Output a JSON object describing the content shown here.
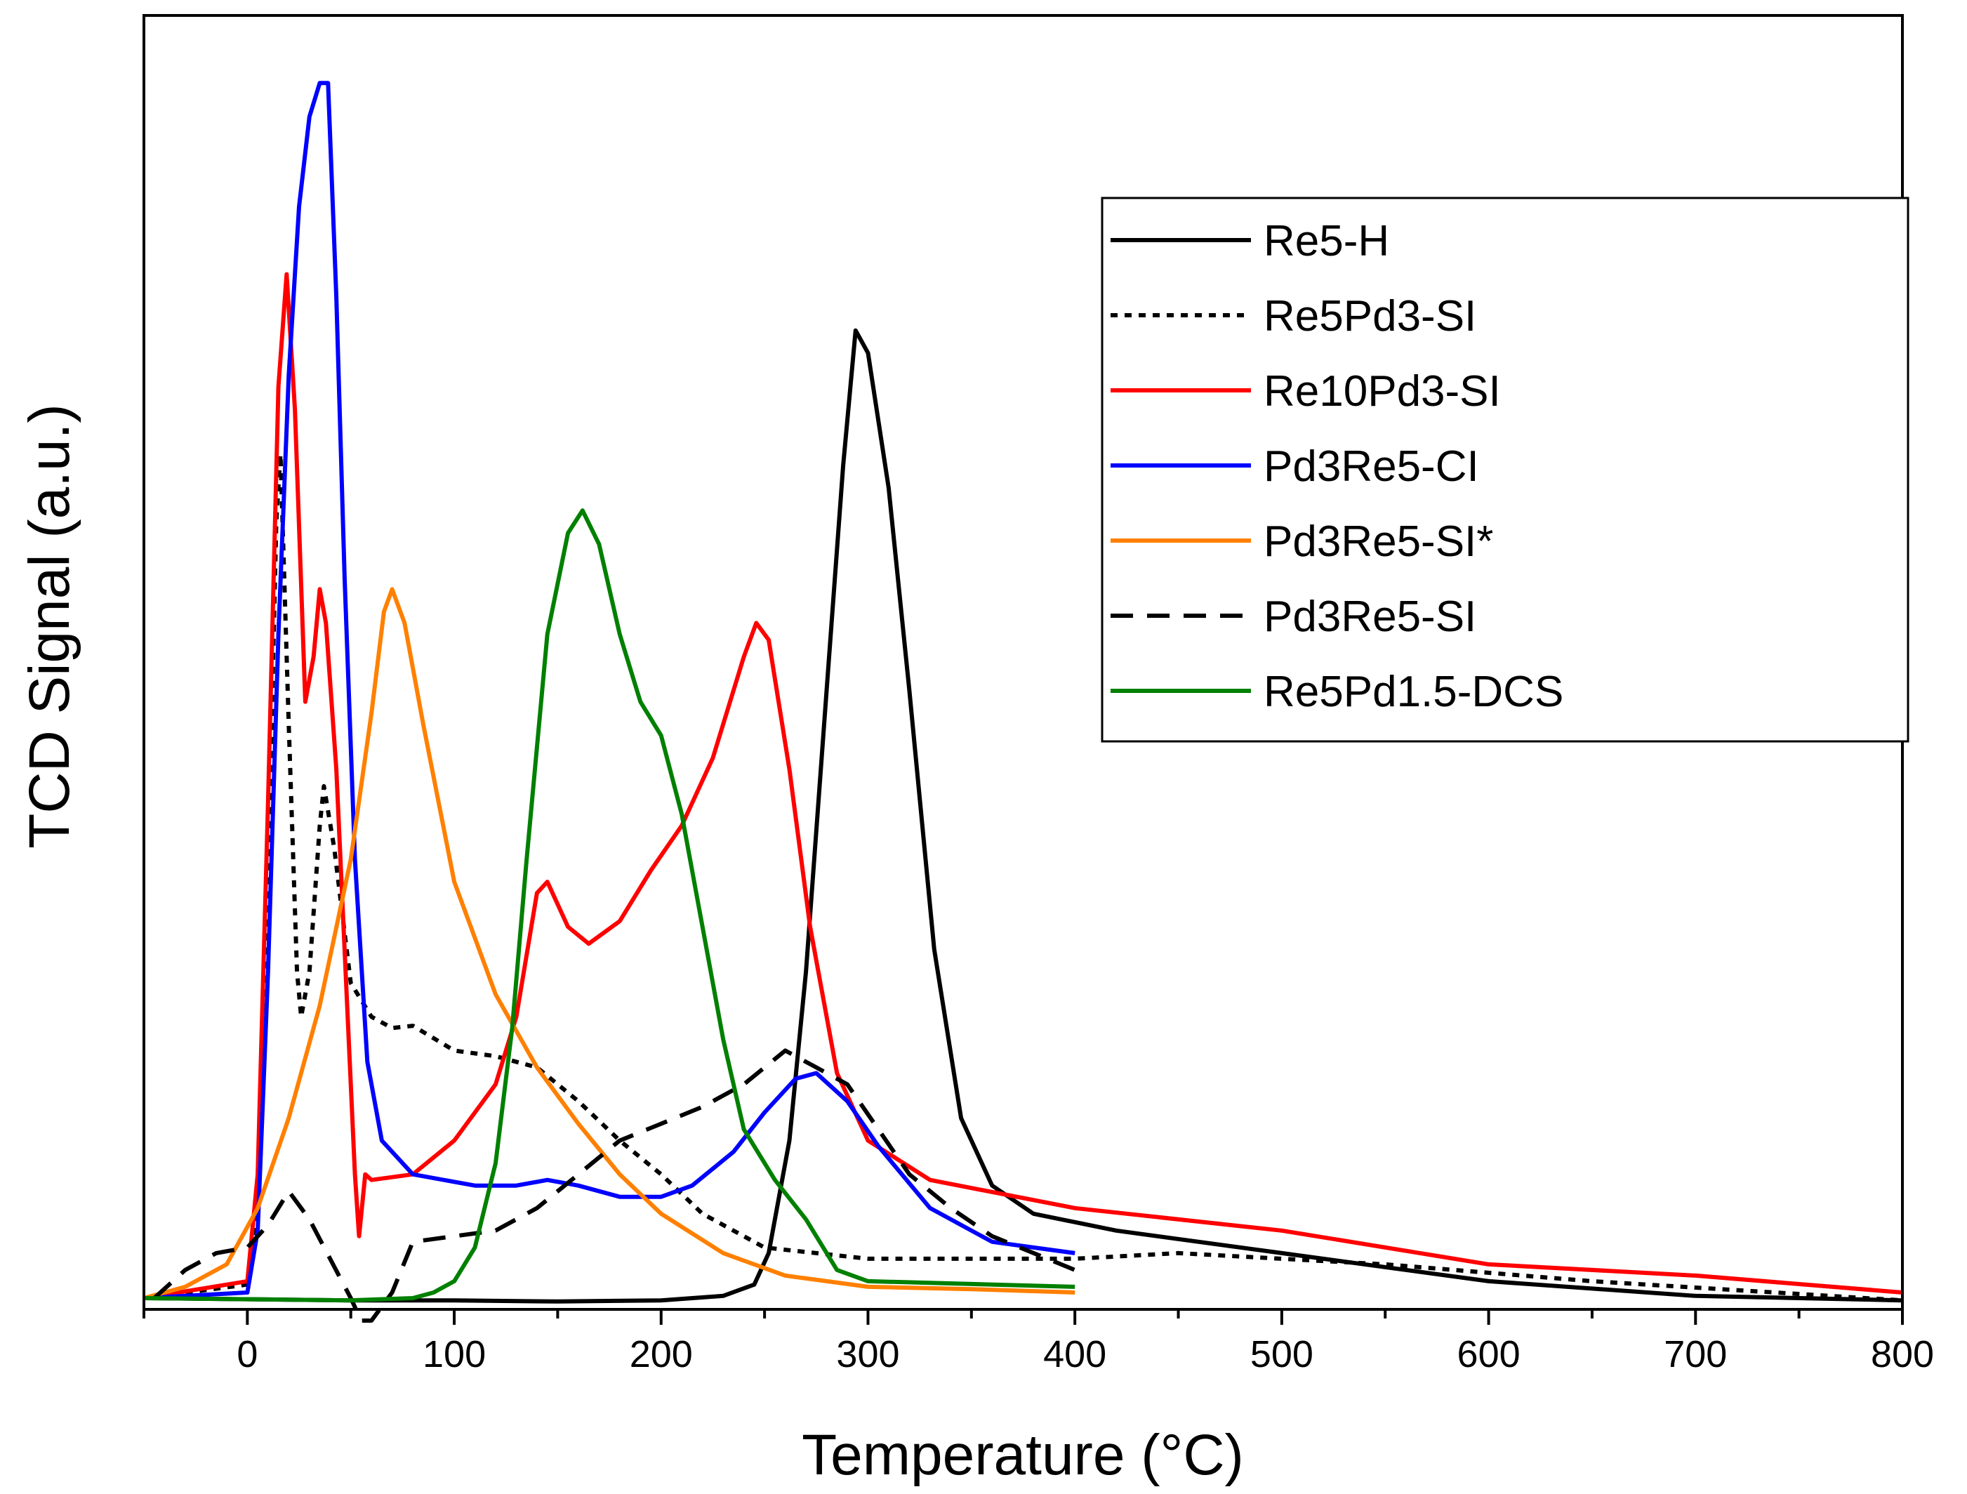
{
  "chart_data": {
    "type": "line",
    "title": "",
    "xlabel": "Temperature (°C)",
    "ylabel": "TCD Signal (a.u.)",
    "xlim": [
      -50,
      800
    ],
    "ylim": [
      0,
      1150
    ],
    "xticks": [
      "0",
      "100",
      "200",
      "300",
      "400",
      "500",
      "600",
      "700",
      "800"
    ],
    "grid": false,
    "legend_position": "top-right",
    "series": [
      {
        "name": "Re5-H",
        "color": "#000000",
        "dash": "solid",
        "points": [
          [
            -50,
            10
          ],
          [
            0,
            9
          ],
          [
            50,
            8
          ],
          [
            100,
            8
          ],
          [
            150,
            7
          ],
          [
            200,
            8
          ],
          [
            230,
            12
          ],
          [
            245,
            22
          ],
          [
            252,
            50
          ],
          [
            262,
            150
          ],
          [
            270,
            300
          ],
          [
            280,
            550
          ],
          [
            288,
            750
          ],
          [
            294,
            870
          ],
          [
            300,
            850
          ],
          [
            310,
            730
          ],
          [
            320,
            550
          ],
          [
            332,
            320
          ],
          [
            345,
            170
          ],
          [
            360,
            110
          ],
          [
            380,
            85
          ],
          [
            420,
            70
          ],
          [
            500,
            50
          ],
          [
            600,
            25
          ],
          [
            700,
            12
          ],
          [
            800,
            8
          ]
        ]
      },
      {
        "name": "Re5Pd3-SI",
        "color": "#000000",
        "dash": "dotted",
        "points": [
          [
            -50,
            10
          ],
          [
            0,
            22
          ],
          [
            5,
            90
          ],
          [
            10,
            380
          ],
          [
            14,
            700
          ],
          [
            16,
            760
          ],
          [
            20,
            520
          ],
          [
            24,
            300
          ],
          [
            26,
            260
          ],
          [
            30,
            300
          ],
          [
            35,
            430
          ],
          [
            37,
            465
          ],
          [
            42,
            410
          ],
          [
            50,
            290
          ],
          [
            60,
            260
          ],
          [
            70,
            250
          ],
          [
            80,
            252
          ],
          [
            100,
            230
          ],
          [
            120,
            225
          ],
          [
            140,
            215
          ],
          [
            160,
            185
          ],
          [
            180,
            150
          ],
          [
            200,
            120
          ],
          [
            220,
            85
          ],
          [
            250,
            55
          ],
          [
            300,
            45
          ],
          [
            400,
            45
          ],
          [
            450,
            50
          ],
          [
            550,
            40
          ],
          [
            650,
            25
          ],
          [
            800,
            8
          ]
        ]
      },
      {
        "name": "Re10Pd3-SI",
        "color": "#ff0000",
        "dash": "solid",
        "points": [
          [
            -50,
            10
          ],
          [
            0,
            25
          ],
          [
            5,
            120
          ],
          [
            10,
            450
          ],
          [
            15,
            820
          ],
          [
            19,
            920
          ],
          [
            23,
            800
          ],
          [
            28,
            540
          ],
          [
            32,
            580
          ],
          [
            35,
            640
          ],
          [
            38,
            610
          ],
          [
            43,
            480
          ],
          [
            48,
            280
          ],
          [
            52,
            120
          ],
          [
            54,
            65
          ],
          [
            57,
            120
          ],
          [
            60,
            115
          ],
          [
            80,
            120
          ],
          [
            100,
            150
          ],
          [
            120,
            200
          ],
          [
            130,
            260
          ],
          [
            140,
            370
          ],
          [
            145,
            380
          ],
          [
            155,
            340
          ],
          [
            165,
            325
          ],
          [
            180,
            345
          ],
          [
            195,
            390
          ],
          [
            210,
            430
          ],
          [
            225,
            490
          ],
          [
            240,
            580
          ],
          [
            246,
            610
          ],
          [
            252,
            595
          ],
          [
            262,
            480
          ],
          [
            272,
            340
          ],
          [
            285,
            210
          ],
          [
            300,
            150
          ],
          [
            330,
            115
          ],
          [
            400,
            90
          ],
          [
            500,
            70
          ],
          [
            600,
            40
          ],
          [
            700,
            30
          ],
          [
            800,
            15
          ]
        ]
      },
      {
        "name": "Pd3Re5-CI",
        "color": "#0000ff",
        "dash": "solid",
        "points": [
          [
            -50,
            10
          ],
          [
            0,
            15
          ],
          [
            5,
            70
          ],
          [
            10,
            300
          ],
          [
            15,
            600
          ],
          [
            20,
            830
          ],
          [
            25,
            980
          ],
          [
            30,
            1060
          ],
          [
            35,
            1090
          ],
          [
            39,
            1090
          ],
          [
            43,
            900
          ],
          [
            47,
            650
          ],
          [
            52,
            400
          ],
          [
            58,
            220
          ],
          [
            65,
            150
          ],
          [
            80,
            120
          ],
          [
            110,
            110
          ],
          [
            130,
            110
          ],
          [
            145,
            115
          ],
          [
            160,
            110
          ],
          [
            180,
            100
          ],
          [
            200,
            100
          ],
          [
            215,
            110
          ],
          [
            235,
            140
          ],
          [
            250,
            175
          ],
          [
            265,
            205
          ],
          [
            275,
            210
          ],
          [
            290,
            185
          ],
          [
            305,
            145
          ],
          [
            330,
            90
          ],
          [
            360,
            60
          ],
          [
            400,
            50
          ]
        ]
      },
      {
        "name": "Pd3Re5-SI*",
        "color": "#ff8000",
        "dash": "solid",
        "points": [
          [
            -50,
            10
          ],
          [
            -30,
            20
          ],
          [
            -10,
            40
          ],
          [
            5,
            90
          ],
          [
            20,
            170
          ],
          [
            35,
            270
          ],
          [
            50,
            400
          ],
          [
            60,
            530
          ],
          [
            66,
            620
          ],
          [
            70,
            640
          ],
          [
            76,
            610
          ],
          [
            85,
            520
          ],
          [
            100,
            380
          ],
          [
            120,
            280
          ],
          [
            140,
            215
          ],
          [
            160,
            165
          ],
          [
            180,
            120
          ],
          [
            200,
            85
          ],
          [
            230,
            50
          ],
          [
            260,
            30
          ],
          [
            300,
            20
          ],
          [
            350,
            18
          ],
          [
            400,
            15
          ]
        ]
      },
      {
        "name": "Pd3Re5-SI",
        "color": "#000000",
        "dash": "dashed",
        "points": [
          [
            -45,
            10
          ],
          [
            -30,
            35
          ],
          [
            -15,
            50
          ],
          [
            0,
            55
          ],
          [
            10,
            75
          ],
          [
            20,
            105
          ],
          [
            30,
            80
          ],
          [
            40,
            45
          ],
          [
            50,
            10
          ],
          [
            55,
            -10
          ],
          [
            60,
            -10
          ],
          [
            70,
            15
          ],
          [
            80,
            60
          ],
          [
            100,
            65
          ],
          [
            120,
            70
          ],
          [
            140,
            90
          ],
          [
            160,
            120
          ],
          [
            180,
            150
          ],
          [
            200,
            165
          ],
          [
            220,
            180
          ],
          [
            240,
            200
          ],
          [
            260,
            230
          ],
          [
            275,
            215
          ],
          [
            290,
            200
          ],
          [
            305,
            160
          ],
          [
            320,
            120
          ],
          [
            340,
            90
          ],
          [
            360,
            65
          ],
          [
            400,
            35
          ]
        ]
      },
      {
        "name": "Re5Pd1.5-DCS",
        "color": "#008000",
        "dash": "solid",
        "points": [
          [
            -50,
            10
          ],
          [
            50,
            8
          ],
          [
            80,
            10
          ],
          [
            90,
            15
          ],
          [
            100,
            25
          ],
          [
            110,
            55
          ],
          [
            120,
            130
          ],
          [
            128,
            250
          ],
          [
            135,
            400
          ],
          [
            145,
            600
          ],
          [
            155,
            690
          ],
          [
            162,
            710
          ],
          [
            170,
            680
          ],
          [
            180,
            600
          ],
          [
            190,
            540
          ],
          [
            200,
            510
          ],
          [
            210,
            440
          ],
          [
            220,
            340
          ],
          [
            230,
            240
          ],
          [
            240,
            160
          ],
          [
            255,
            115
          ],
          [
            270,
            80
          ],
          [
            285,
            35
          ],
          [
            300,
            25
          ],
          [
            400,
            20
          ]
        ]
      }
    ]
  }
}
